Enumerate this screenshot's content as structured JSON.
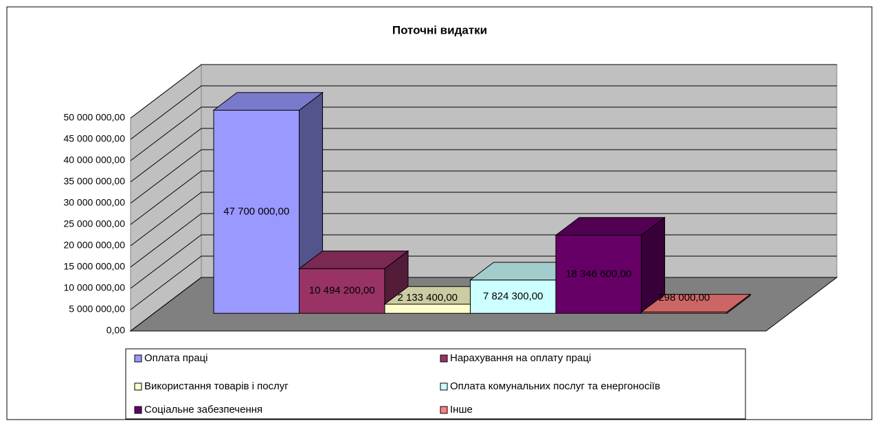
{
  "chart_data": {
    "type": "bar3d",
    "title": "Поточні видатки",
    "series": [
      {
        "name": "Оплата праці",
        "color": "#9999ff",
        "values": [
          47700000
        ],
        "value_labels": [
          "47 700 000,00"
        ]
      },
      {
        "name": "Нарахування на оплату праці",
        "color": "#993366",
        "values": [
          10494200
        ],
        "value_labels": [
          "10 494 200,00"
        ]
      },
      {
        "name": "Використання товарів і послуг",
        "color": "#ffffcc",
        "values": [
          2133400
        ],
        "value_labels": [
          "2 133 400,00"
        ]
      },
      {
        "name": "Оплата комунальних послуг та енергоносіїв",
        "color": "#ccffff",
        "values": [
          7824300
        ],
        "value_labels": [
          "7 824 300,00"
        ]
      },
      {
        "name": "Соціальне забезпечення",
        "color": "#660066",
        "values": [
          18346600
        ],
        "value_labels": [
          "18 346 600,00"
        ]
      },
      {
        "name": "Інше",
        "color": "#ff8080",
        "values": [
          298000
        ],
        "value_labels": [
          "298 000,00"
        ]
      }
    ],
    "ylim": [
      0,
      50000000
    ],
    "yticks": [
      {
        "value": 0,
        "label": "0,00"
      },
      {
        "value": 5000000,
        "label": "5 000 000,00"
      },
      {
        "value": 10000000,
        "label": "10 000 000,00"
      },
      {
        "value": 15000000,
        "label": "15 000 000,00"
      },
      {
        "value": 20000000,
        "label": "20 000 000,00"
      },
      {
        "value": 25000000,
        "label": "25 000 000,00"
      },
      {
        "value": 30000000,
        "label": "30 000 000,00"
      },
      {
        "value": 35000000,
        "label": "35 000 000,00"
      },
      {
        "value": 40000000,
        "label": "40 000 000,00"
      },
      {
        "value": 45000000,
        "label": "45 000 000,00"
      },
      {
        "value": 50000000,
        "label": "50 000 000,00"
      }
    ],
    "grid": true,
    "legend": "bottom"
  }
}
